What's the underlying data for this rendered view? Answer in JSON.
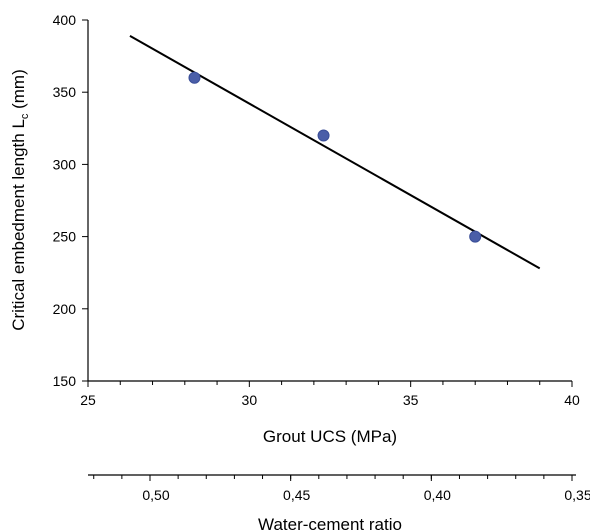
{
  "chart_data": {
    "type": "scatter",
    "title": "",
    "xlabel": "Grout UCS (MPa)",
    "ylabel_main": "Critical embedment length L",
    "ylabel_sub": "c",
    "ylabel_unit": " (mm)",
    "xlim": [
      25,
      40
    ],
    "ylim": [
      150,
      400
    ],
    "x_ticks": [
      "25",
      "30",
      "35",
      "40"
    ],
    "y_ticks": [
      "150",
      "200",
      "250",
      "300",
      "350",
      "400"
    ],
    "series": [
      {
        "x": [
          28.3,
          32.3,
          37.0
        ],
        "y": [
          360,
          320,
          250
        ],
        "color": "#4a5ea8"
      }
    ],
    "trendline": {
      "x": [
        26.3,
        39.0
      ],
      "y": [
        389,
        228
      ]
    },
    "secondary_x_axis": {
      "label": "Water-cement ratio",
      "tick_labels": [
        "0,50",
        "0,45",
        "0,40",
        "0,35"
      ],
      "tick_values": [
        0.5,
        0.45,
        0.4,
        0.35
      ]
    },
    "grid": false
  }
}
